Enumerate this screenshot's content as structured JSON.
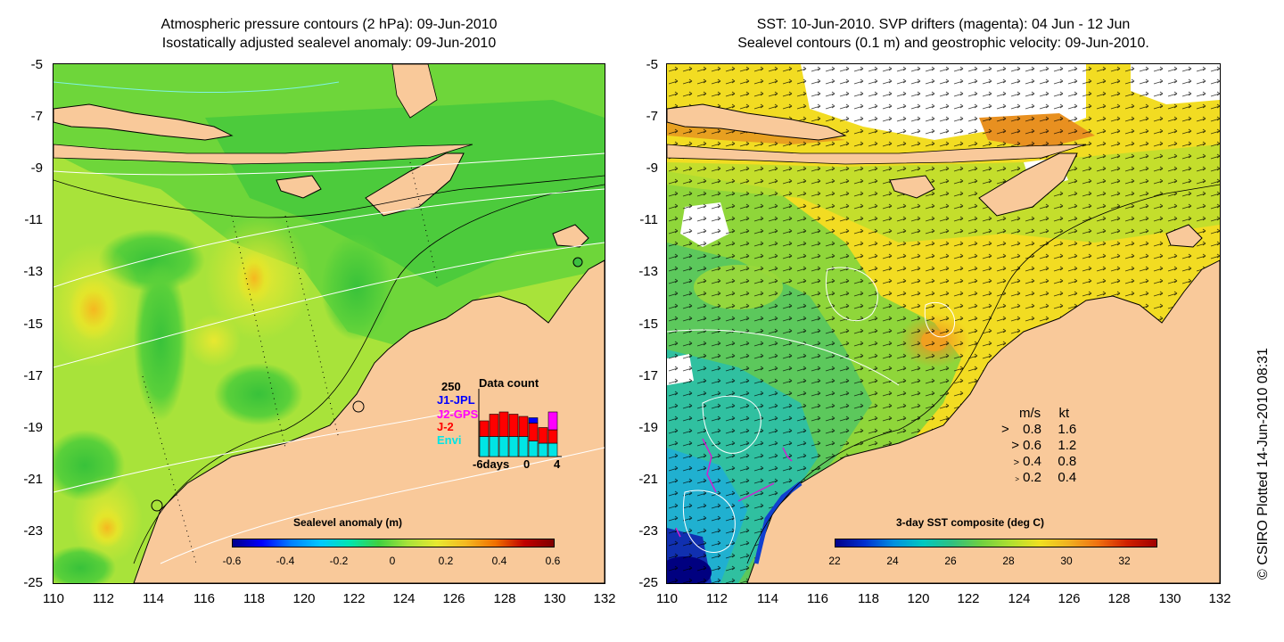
{
  "left_panel": {
    "title_line1": "Atmospheric pressure contours (2 hPa): 09-Jun-2010",
    "title_line2": "Isostatically adjusted sealevel anomaly: 09-Jun-2010",
    "colorbar": {
      "title": "Sealevel anomaly (m)",
      "labels": [
        "-0.6",
        "-0.4",
        "-0.2",
        "0",
        "0.2",
        "0.4",
        "0.6"
      ]
    },
    "data_count": {
      "title": "Data count",
      "max_label": "250",
      "missions": [
        "J1-JPL",
        "J2-GPS",
        "J-2",
        "Envi"
      ],
      "mission_colors": [
        "#0000ff",
        "#ff00ff",
        "#ff0000",
        "#00e5e5"
      ],
      "axis_start": "-6days",
      "axis_mid": "0",
      "axis_end": "4",
      "bars_envi": [
        0.45,
        0.45,
        0.45,
        0.45,
        0.45,
        0.35,
        0.3,
        0.3
      ],
      "bars_j2": [
        0.35,
        0.5,
        0.55,
        0.5,
        0.45,
        0.4,
        0.35,
        0.3
      ],
      "bars_j1": [
        0,
        0,
        0,
        0,
        0,
        0.12,
        0,
        0
      ],
      "bars_j2gps": [
        0,
        0,
        0,
        0,
        0,
        0,
        0,
        0.4
      ]
    }
  },
  "right_panel": {
    "title_line1": "SST: 10-Jun-2010. SVP drifters (magenta): 04 Jun - 12 Jun",
    "title_line2": "Sealevel contours (0.1 m) and geostrophic velocity: 09-Jun-2010.",
    "colorbar": {
      "title": "3-day SST composite (deg C)",
      "labels": [
        "22",
        "24",
        "26",
        "28",
        "30",
        "32"
      ]
    },
    "velocity_legend": {
      "header_ms": "m/s",
      "header_kt": "kt",
      "rows": [
        {
          "ms": "0.8",
          "kt": "1.6"
        },
        {
          "ms": "0.6",
          "kt": "1.2"
        },
        {
          "ms": "0.4",
          "kt": "0.8"
        },
        {
          "ms": "0.2",
          "kt": "0.4"
        }
      ]
    }
  },
  "axes": {
    "lat_labels": [
      "-5",
      "-7",
      "-9",
      "-11",
      "-13",
      "-15",
      "-17",
      "-19",
      "-21",
      "-23",
      "-25"
    ],
    "lon_labels": [
      "110",
      "112",
      "114",
      "116",
      "118",
      "120",
      "122",
      "124",
      "126",
      "128",
      "130",
      "132"
    ]
  },
  "copyright": "© CSIRO Plotted 14-Jun-2010 08:31",
  "colors": {
    "land": "#f9c99a",
    "sla_base": "#a8e33a",
    "sst_base": "#f2dc22",
    "cloud": "#ffffff"
  }
}
